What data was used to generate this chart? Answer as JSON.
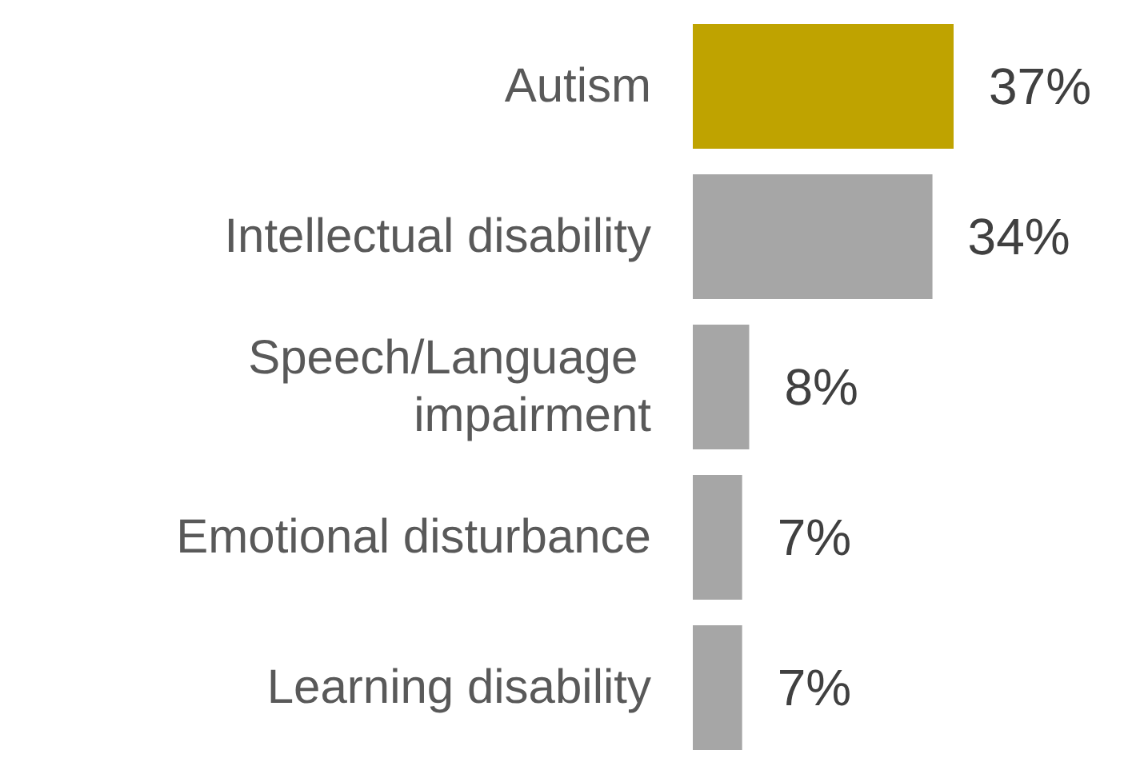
{
  "chart_data": {
    "type": "bar",
    "orientation": "horizontal",
    "categories": [
      "Autism",
      "Intellectual disability",
      "Speech/Language impairment",
      "Emotional disturbance",
      "Learning disability"
    ],
    "values": [
      37,
      34,
      8,
      7,
      7
    ],
    "colors": [
      "#bfa300",
      "#a6a6a6",
      "#a6a6a6",
      "#a6a6a6",
      "#a6a6a6"
    ],
    "value_labels": [
      "37%",
      "34%",
      "8%",
      "7%",
      "7%"
    ]
  }
}
